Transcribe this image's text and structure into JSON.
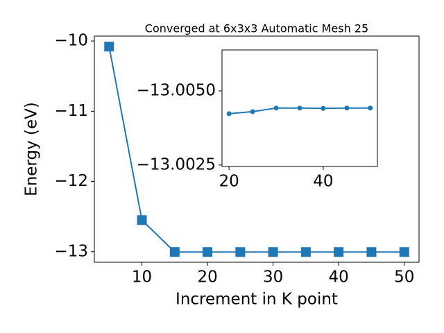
{
  "chart_data": [
    {
      "type": "line",
      "title": "Converged at 6x3x3 Automatic Mesh 25",
      "x_label": "Increment in K point",
      "y_label": "Energy (eV)",
      "x": [
        5,
        10,
        15,
        20,
        25,
        30,
        35,
        40,
        45,
        50
      ],
      "series": [
        {
          "color": "#1f77b4",
          "marker": "square",
          "values": [
            -10.08,
            -12.55,
            -13.004,
            -13.00423,
            -13.0043,
            -13.00442,
            -13.00442,
            -13.00441,
            -13.00442,
            -13.00442
          ]
        }
      ],
      "xlim": [
        2.75,
        52.25
      ],
      "xticks": [
        10,
        20,
        30,
        40,
        50
      ],
      "ylim": [
        -13.15,
        -9.93
      ],
      "yticks": [
        {
          "value": -13,
          "label": "−13"
        },
        {
          "value": -12,
          "label": "−12"
        },
        {
          "value": -11,
          "label": "−11"
        },
        {
          "value": -10,
          "label": "−10"
        }
      ]
    },
    {
      "type": "line",
      "x": [
        20,
        25,
        30,
        35,
        40,
        45,
        50
      ],
      "series": [
        {
          "color": "#1f77b4",
          "marker": "circle",
          "values": [
            -13.00423,
            -13.0043,
            -13.00442,
            -13.00442,
            -13.00441,
            -13.00442,
            -13.00442
          ]
        }
      ],
      "xlim": [
        18.5,
        51.5
      ],
      "xticks": [
        20,
        40
      ],
      "ylim": [
        -13.00245,
        -13.00638
      ],
      "yticks": [
        {
          "value": -13.0025,
          "label": "−13.0025"
        },
        {
          "value": -13.005,
          "label": "−13.0050"
        }
      ]
    }
  ]
}
